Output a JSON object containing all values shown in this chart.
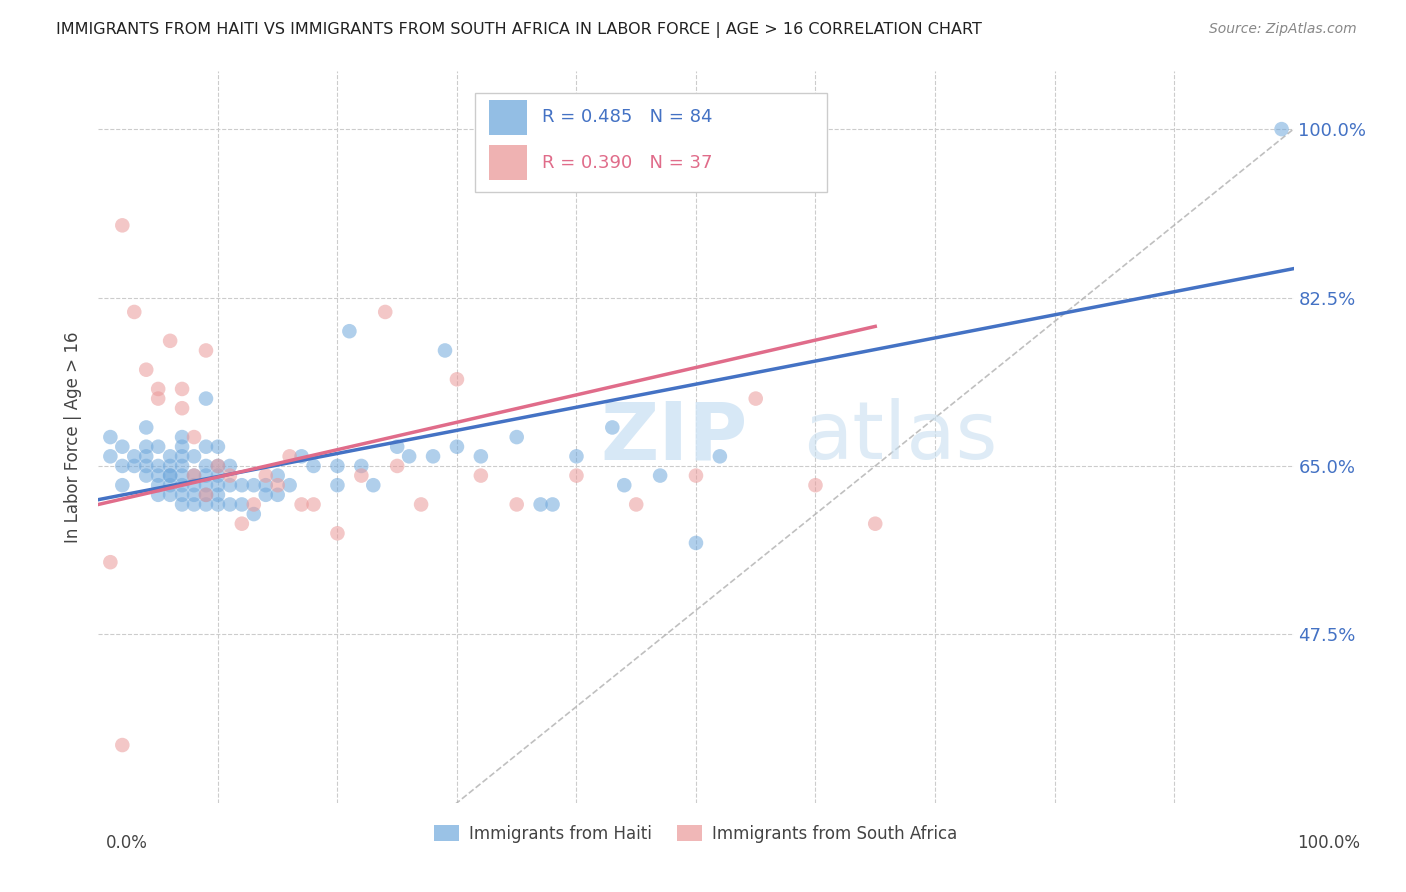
{
  "title": "IMMIGRANTS FROM HAITI VS IMMIGRANTS FROM SOUTH AFRICA IN LABOR FORCE | AGE > 16 CORRELATION CHART",
  "source": "Source: ZipAtlas.com",
  "ylabel": "In Labor Force | Age > 16",
  "ytick_vals": [
    0.475,
    0.65,
    0.825,
    1.0
  ],
  "ytick_labels": [
    "47.5%",
    "65.0%",
    "82.5%",
    "100.0%"
  ],
  "xlim": [
    0.0,
    1.0
  ],
  "ylim": [
    0.3,
    1.06
  ],
  "legend_r1": "R = 0.485",
  "legend_n1": "N = 84",
  "legend_r2": "R = 0.390",
  "legend_n2": "N = 37",
  "haiti_color": "#6fa8dc",
  "sa_color": "#ea9999",
  "haiti_line_color": "#4472c4",
  "sa_line_color": "#e06c8a",
  "diag_line_color": "#b0b0b0",
  "background_color": "#ffffff",
  "watermark_zip": "ZIP",
  "watermark_atlas": "atlas",
  "haiti_line_x0": 0.0,
  "haiti_line_y0": 0.615,
  "haiti_line_x1": 1.0,
  "haiti_line_y1": 0.855,
  "sa_line_x0": 0.0,
  "sa_line_y0": 0.61,
  "sa_line_x1": 0.65,
  "sa_line_y1": 0.795,
  "haiti_scatter_x": [
    0.01,
    0.01,
    0.02,
    0.02,
    0.02,
    0.03,
    0.03,
    0.04,
    0.04,
    0.04,
    0.04,
    0.04,
    0.05,
    0.05,
    0.05,
    0.05,
    0.05,
    0.06,
    0.06,
    0.06,
    0.06,
    0.06,
    0.06,
    0.07,
    0.07,
    0.07,
    0.07,
    0.07,
    0.07,
    0.07,
    0.07,
    0.08,
    0.08,
    0.08,
    0.08,
    0.08,
    0.09,
    0.09,
    0.09,
    0.09,
    0.09,
    0.09,
    0.09,
    0.1,
    0.1,
    0.1,
    0.1,
    0.1,
    0.1,
    0.11,
    0.11,
    0.11,
    0.12,
    0.12,
    0.13,
    0.13,
    0.14,
    0.14,
    0.15,
    0.15,
    0.16,
    0.17,
    0.18,
    0.2,
    0.2,
    0.21,
    0.22,
    0.23,
    0.25,
    0.26,
    0.28,
    0.29,
    0.3,
    0.32,
    0.35,
    0.37,
    0.38,
    0.4,
    0.43,
    0.44,
    0.47,
    0.5,
    0.52,
    0.99
  ],
  "haiti_scatter_y": [
    0.66,
    0.68,
    0.63,
    0.65,
    0.67,
    0.65,
    0.66,
    0.64,
    0.65,
    0.66,
    0.67,
    0.69,
    0.62,
    0.63,
    0.64,
    0.65,
    0.67,
    0.62,
    0.63,
    0.64,
    0.64,
    0.65,
    0.66,
    0.61,
    0.62,
    0.63,
    0.64,
    0.65,
    0.66,
    0.67,
    0.68,
    0.61,
    0.62,
    0.63,
    0.64,
    0.66,
    0.61,
    0.62,
    0.63,
    0.64,
    0.65,
    0.67,
    0.72,
    0.61,
    0.62,
    0.63,
    0.64,
    0.65,
    0.67,
    0.61,
    0.63,
    0.65,
    0.61,
    0.63,
    0.6,
    0.63,
    0.62,
    0.63,
    0.62,
    0.64,
    0.63,
    0.66,
    0.65,
    0.63,
    0.65,
    0.79,
    0.65,
    0.63,
    0.67,
    0.66,
    0.66,
    0.77,
    0.67,
    0.66,
    0.68,
    0.61,
    0.61,
    0.66,
    0.69,
    0.63,
    0.64,
    0.57,
    0.66,
    1.0
  ],
  "sa_scatter_x": [
    0.01,
    0.02,
    0.03,
    0.04,
    0.05,
    0.05,
    0.06,
    0.07,
    0.07,
    0.08,
    0.08,
    0.09,
    0.09,
    0.1,
    0.11,
    0.12,
    0.13,
    0.14,
    0.15,
    0.16,
    0.17,
    0.18,
    0.2,
    0.22,
    0.24,
    0.25,
    0.27,
    0.3,
    0.32,
    0.35,
    0.4,
    0.45,
    0.5,
    0.55,
    0.6,
    0.65,
    0.02
  ],
  "sa_scatter_y": [
    0.55,
    0.9,
    0.81,
    0.75,
    0.72,
    0.73,
    0.78,
    0.71,
    0.73,
    0.64,
    0.68,
    0.62,
    0.77,
    0.65,
    0.64,
    0.59,
    0.61,
    0.64,
    0.63,
    0.66,
    0.61,
    0.61,
    0.58,
    0.64,
    0.81,
    0.65,
    0.61,
    0.74,
    0.64,
    0.61,
    0.64,
    0.61,
    0.64,
    0.72,
    0.63,
    0.59,
    0.36
  ]
}
